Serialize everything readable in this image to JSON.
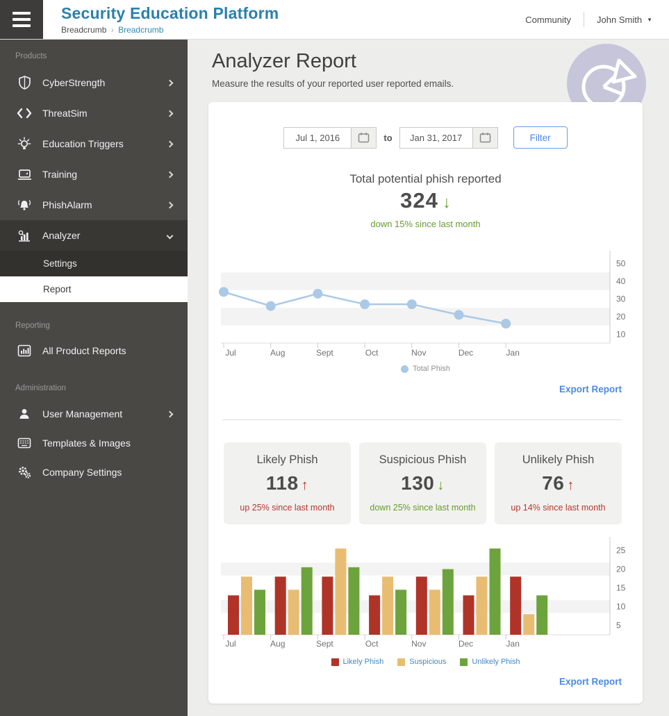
{
  "header": {
    "product_name": "Security Education Platform",
    "breadcrumbs": [
      "Breadcrumb",
      "Breadcrumb"
    ],
    "breadcrumb_separator": "›",
    "community_label": "Community",
    "user_name": "John Smith"
  },
  "sidebar": {
    "sections": [
      {
        "label": "Products",
        "items": [
          {
            "label": "CyberStrength",
            "icon": "shield-icon"
          },
          {
            "label": "ThreatSim",
            "icon": "code-icon"
          },
          {
            "label": "Education Triggers",
            "icon": "lightbulb-icon"
          },
          {
            "label": "Training",
            "icon": "monitor-icon"
          },
          {
            "label": "PhishAlarm",
            "icon": "bell-icon"
          },
          {
            "label": "Analyzer",
            "icon": "analyzer-icon",
            "expanded": true,
            "children": [
              {
                "label": "Settings",
                "selected": false
              },
              {
                "label": "Report",
                "selected": true
              }
            ]
          }
        ]
      },
      {
        "label": "Reporting",
        "items": [
          {
            "label": "All Product Reports",
            "icon": "report-chart-icon"
          }
        ]
      },
      {
        "label": "Administration",
        "items": [
          {
            "label": "User Management",
            "icon": "user-icon"
          },
          {
            "label": "Templates & Images",
            "icon": "templates-icon"
          },
          {
            "label": "Company Settings",
            "icon": "gears-icon"
          }
        ]
      }
    ]
  },
  "main": {
    "title": "Analyzer Report",
    "subtitle": "Measure the results of your reported user reported emails.",
    "filter": {
      "start_date": "Jul 1, 2016",
      "conjunction": "to",
      "end_date": "Jan 31, 2017",
      "filter_button": "Filter"
    },
    "total_stat": {
      "label": "Total potential phish reported",
      "value": "324",
      "direction": "down",
      "note": "down 15% since last month"
    },
    "export_link_top": "Export Report",
    "stat_cards": [
      {
        "label": "Likely Phish",
        "value": "118",
        "direction": "up",
        "note": "up 25% since last month"
      },
      {
        "label": "Suspicious Phish",
        "value": "130",
        "direction": "down",
        "note": "down 25% since last month"
      },
      {
        "label": "Unlikely Phish",
        "value": "76",
        "direction": "up",
        "note": "up 14% since last month"
      }
    ],
    "export_link_bottom": "Export Report"
  },
  "colors": {
    "brand_teal": "#2c80ab",
    "link_blue": "#4a89e8",
    "positive_green": "#679b2f",
    "negative_red": "#b5372c"
  },
  "chart_data": [
    {
      "type": "line",
      "title": "Total potential phish reported by month",
      "categories": [
        "Jul",
        "Aug",
        "Sept",
        "Oct",
        "Nov",
        "Dec",
        "Jan"
      ],
      "series": [
        {
          "name": "Total Phish",
          "color": "#aac9e6",
          "values": [
            34,
            26,
            33,
            27,
            27,
            21,
            16
          ]
        }
      ],
      "ylim": [
        5,
        55
      ],
      "yticks": [
        10,
        20,
        30,
        40,
        50
      ],
      "bands": [
        [
          15,
          25
        ],
        [
          35,
          45
        ]
      ],
      "grid": false,
      "legend_position": "bottom",
      "yaxis_side": "right"
    },
    {
      "type": "bar",
      "title": "Phish categories by month",
      "categories": [
        "Jul",
        "Aug",
        "Sept",
        "Oct",
        "Nov",
        "Dec",
        "Jan"
      ],
      "series": [
        {
          "name": "Likely Phish",
          "color": "#b03328",
          "values": [
            13,
            18,
            18,
            13,
            18,
            13,
            18
          ]
        },
        {
          "name": "Suspicious",
          "color": "#e8bd72",
          "values": [
            18,
            14.5,
            25.5,
            18,
            14.5,
            18,
            8
          ]
        },
        {
          "name": "Unlikely Phish",
          "color": "#6da33c",
          "values": [
            14.5,
            20.5,
            20.5,
            14.5,
            20,
            25.5,
            13
          ]
        }
      ],
      "ylim": [
        2.5,
        27.5
      ],
      "yticks": [
        5,
        10,
        15,
        20,
        25
      ],
      "bands": [
        [
          8.3,
          11.7
        ],
        [
          18.3,
          21.7
        ]
      ],
      "grid": false,
      "legend_position": "bottom",
      "yaxis_side": "right"
    }
  ]
}
